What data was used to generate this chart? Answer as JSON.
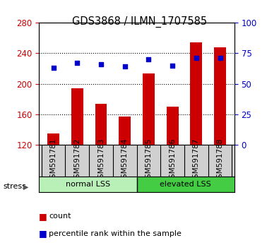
{
  "title": "GDS3868 / ILMN_1707585",
  "samples": [
    "GSM591781",
    "GSM591782",
    "GSM591783",
    "GSM591784",
    "GSM591785",
    "GSM591786",
    "GSM591787",
    "GSM591788"
  ],
  "counts": [
    135,
    194,
    174,
    157,
    213,
    170,
    254,
    248
  ],
  "percentile_ranks": [
    63,
    67,
    66,
    64,
    70,
    65,
    71,
    71
  ],
  "ymin": 120,
  "ymax": 280,
  "yticks_left": [
    120,
    160,
    200,
    240,
    280
  ],
  "yticks_right": [
    0,
    25,
    50,
    75,
    100
  ],
  "bar_color": "#cc0000",
  "dot_color": "#0000cc",
  "tick_color_left": "#cc0000",
  "tick_color_right": "#0000cc",
  "group1_color": "#b8f0b8",
  "group2_color": "#44cc44",
  "group1_label": "normal LSS",
  "group2_label": "elevated LSS",
  "legend_items": [
    {
      "color": "#cc0000",
      "label": "count"
    },
    {
      "color": "#0000cc",
      "label": "percentile rank within the sample"
    }
  ]
}
